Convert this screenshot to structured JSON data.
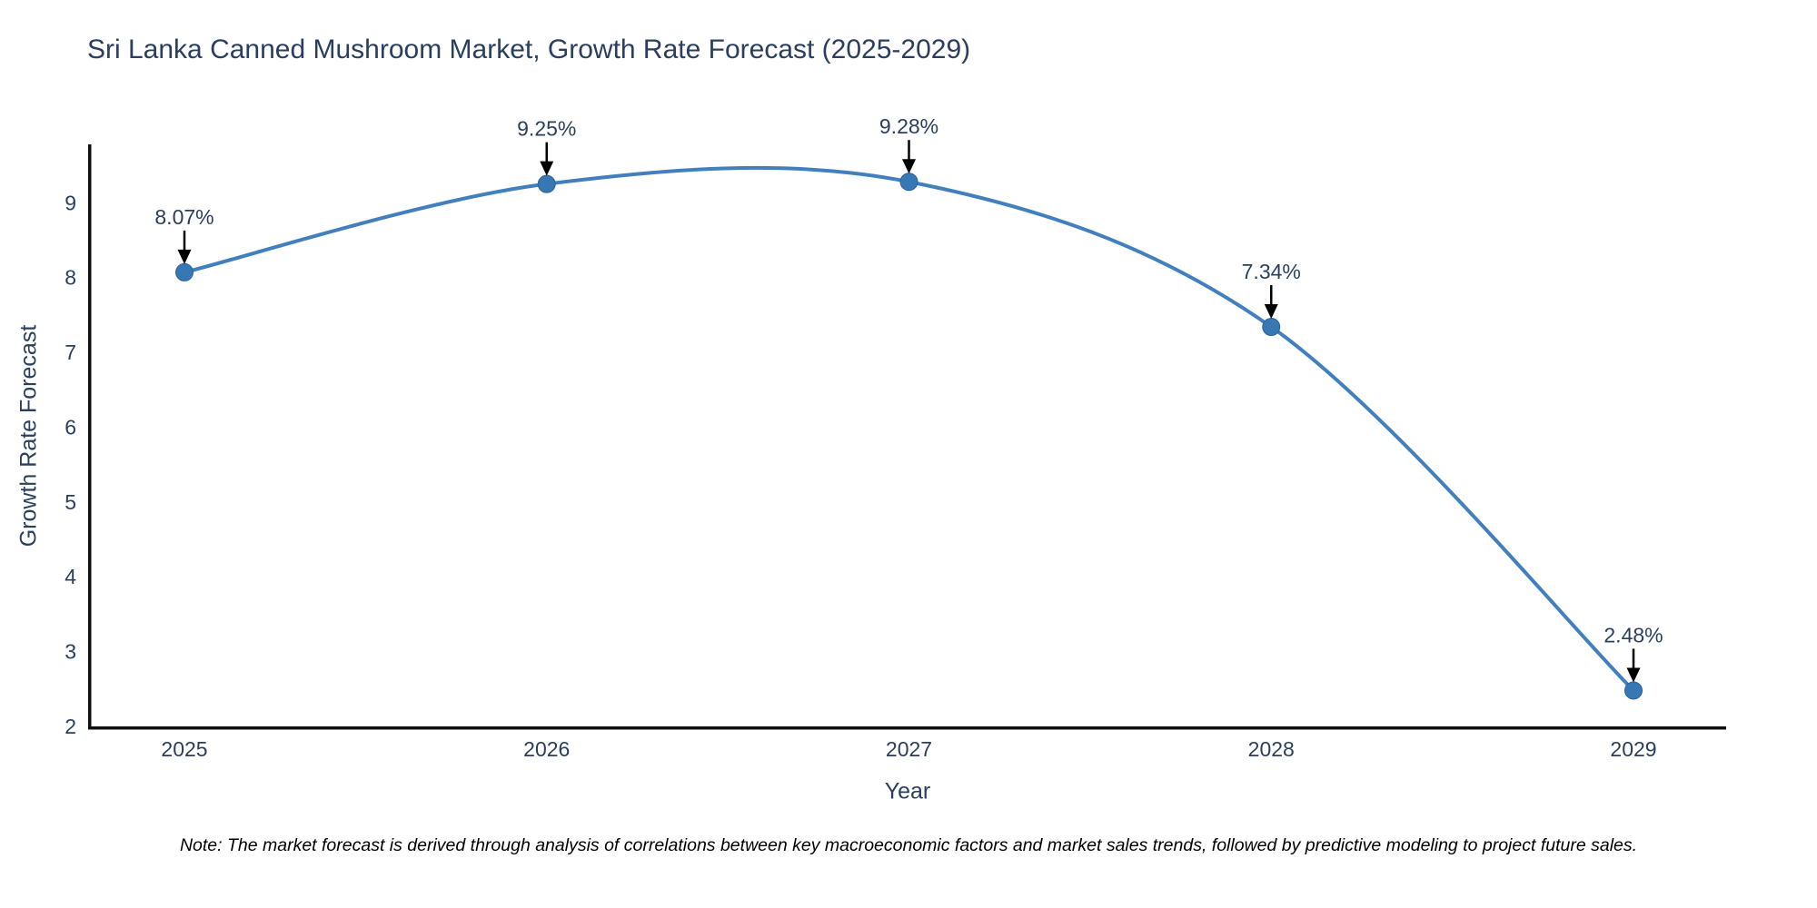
{
  "title": "Sri Lanka Canned Mushroom Market, Growth Rate Forecast (2025-2029)",
  "note": "Note: The market forecast is derived through analysis of correlations between key macroeconomic factors and market sales trends, followed by predictive modeling to project future sales.",
  "chart_data": {
    "type": "line",
    "line_shape": "spline",
    "categories": [
      "2025",
      "2026",
      "2027",
      "2028",
      "2029"
    ],
    "values": [
      8.07,
      9.25,
      9.28,
      7.34,
      2.48
    ],
    "point_labels": [
      "8.07%",
      "9.25%",
      "9.28%",
      "7.34%",
      "2.48%"
    ],
    "title": "Sri Lanka Canned Mushroom Market, Growth Rate Forecast (2025-2029)",
    "xlabel": "Year",
    "ylabel": "Growth Rate Forecast",
    "yticks": [
      2,
      3,
      4,
      5,
      6,
      7,
      8,
      9
    ],
    "ylim": [
      2,
      9.78
    ],
    "grid": false,
    "legend": false,
    "annotations_have_arrows": true,
    "colors": {
      "line": "#4180bd",
      "marker_fill": "#3778b4",
      "marker_edge": "#2b629a",
      "axis_line": "#0f0f0f",
      "text": "#2a3f5f",
      "annotation_arrow": "#000000",
      "background": "#ffffff"
    }
  }
}
